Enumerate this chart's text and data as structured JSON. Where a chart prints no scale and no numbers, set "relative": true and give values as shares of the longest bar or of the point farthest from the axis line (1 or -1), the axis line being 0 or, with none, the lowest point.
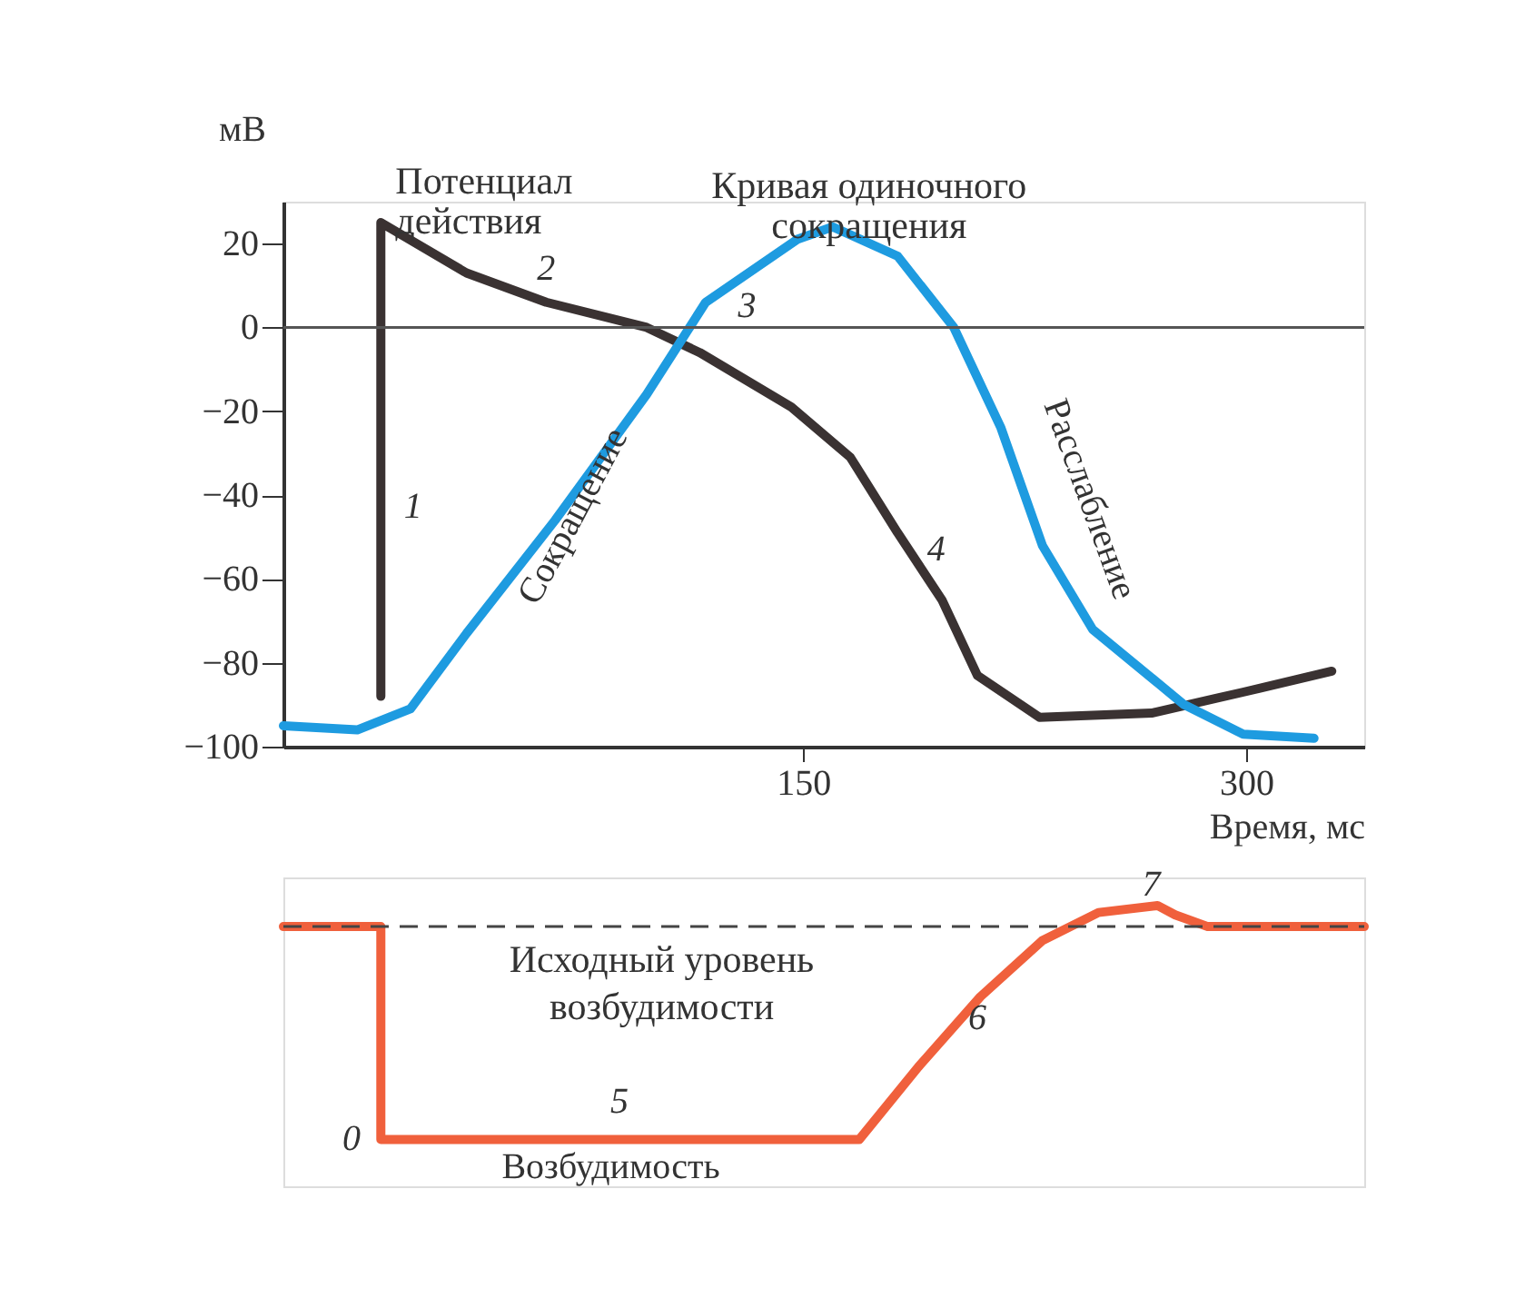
{
  "chart_data": [
    {
      "type": "line",
      "ylabel": "мВ",
      "xlabel": "Время, мс",
      "xlim": [
        -26,
        340
      ],
      "ylim": [
        -100,
        30
      ],
      "xticks": [
        150,
        300
      ],
      "yticks": [
        -100,
        -80,
        -60,
        -40,
        -20,
        0,
        20
      ],
      "grid": false,
      "legend": false,
      "series": [
        {
          "name": "Потенциал действия",
          "color": "#3a3232",
          "x": [
            7,
            7,
            36,
            63,
            97,
            115,
            146,
            166,
            182,
            197,
            209,
            230,
            268,
            299,
            329
          ],
          "values": [
            -88,
            25,
            13,
            6,
            0,
            -6,
            -19,
            -31,
            -49,
            -65,
            -83,
            -93,
            -92,
            -87,
            -82
          ]
        },
        {
          "name": "Кривая одиночного сокращения",
          "color": "#1e9be0",
          "x": [
            -26,
            -1,
            17,
            36,
            66,
            97,
            117,
            148,
            160,
            182,
            201,
            217,
            231,
            248,
            279,
            299,
            323
          ],
          "values": [
            -95,
            -96,
            -91,
            -73,
            -46,
            -16,
            6,
            21,
            24,
            17,
            0,
            -24,
            -52,
            -72,
            -90,
            -97,
            -98
          ]
        }
      ],
      "ref_lines": [
        {
          "axis": "y",
          "value": 0,
          "color": "#555555",
          "line_style": "solid"
        }
      ],
      "annotations": [
        "1",
        "2",
        "3",
        "4",
        "Сокращение",
        "Расслабление"
      ]
    },
    {
      "type": "line",
      "relative": true,
      "xlim": [
        -26,
        340
      ],
      "tick_labels": false,
      "grid": false,
      "legend": false,
      "series": [
        {
          "color": "#f0603c",
          "x": [
            -26,
            7,
            7,
            169,
            189,
            210,
            231,
            250,
            270,
            276,
            287,
            340
          ],
          "values": [
            0.91,
            0.91,
            0,
            0,
            0.31,
            0.61,
            0.85,
            0.97,
            1,
            0.96,
            0.91,
            0.91
          ]
        }
      ],
      "ref_lines": [
        {
          "axis": "y",
          "value": 0.91,
          "label": "Исходный уровень возбудимости",
          "color": "#444444",
          "line_style": "dashed"
        }
      ],
      "annotations": [
        "5",
        "6",
        "7",
        "0",
        "Возбудимость"
      ]
    }
  ]
}
